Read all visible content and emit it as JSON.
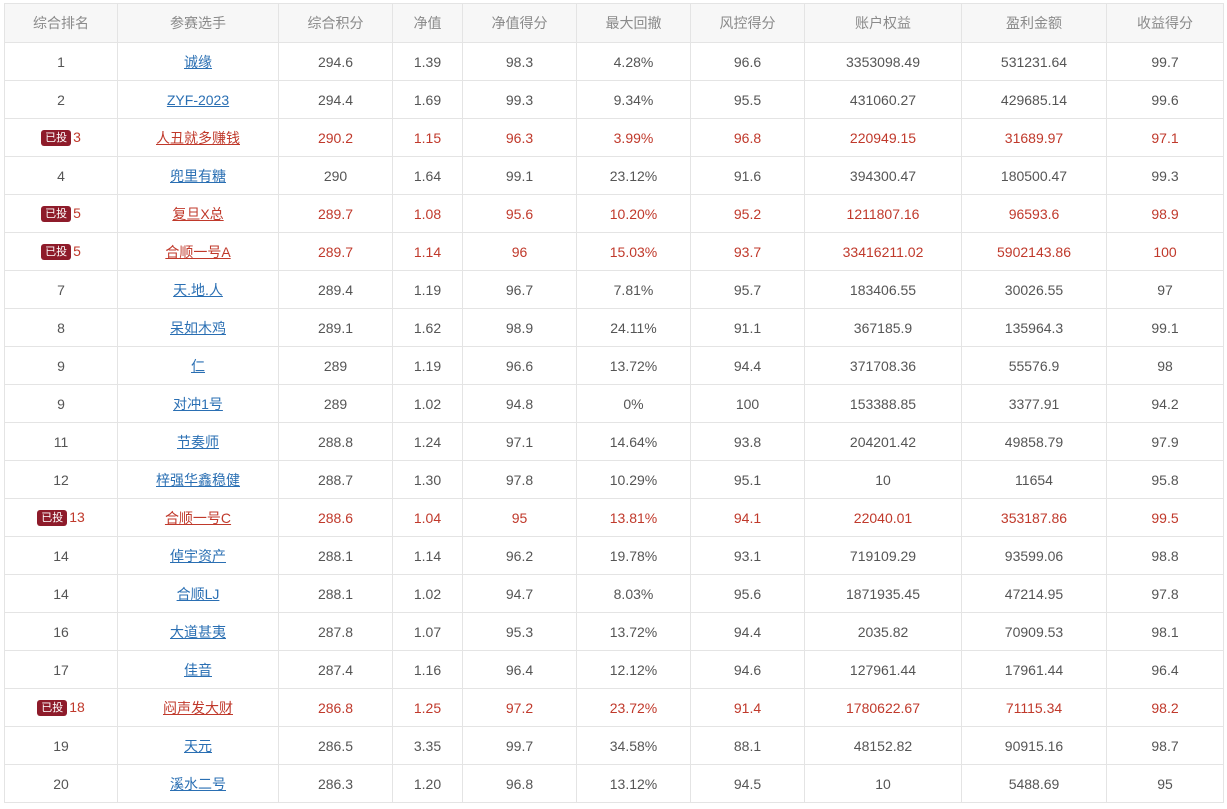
{
  "headers": [
    "综合排名",
    "参赛选手",
    "综合积分",
    "净值",
    "净值得分",
    "最大回撤",
    "风控得分",
    "账户权益",
    "盈利金额",
    "收益得分"
  ],
  "badge_label": "已投",
  "colors": {
    "invested_text": "#c0392b",
    "badge_bg": "#8e1b2a",
    "link": "#2a6fb3"
  },
  "rows": [
    {
      "rank": "1",
      "name": "诚缘",
      "score": "294.6",
      "nav": "1.39",
      "nav_score": "98.3",
      "max_dd": "4.28%",
      "risk_score": "96.6",
      "equity": "3353098.49",
      "profit": "531231.64",
      "return_score": "99.7",
      "invested": false
    },
    {
      "rank": "2",
      "name": "ZYF-2023",
      "score": "294.4",
      "nav": "1.69",
      "nav_score": "99.3",
      "max_dd": "9.34%",
      "risk_score": "95.5",
      "equity": "431060.27",
      "profit": "429685.14",
      "return_score": "99.6",
      "invested": false
    },
    {
      "rank": "3",
      "name": "人丑就多赚钱",
      "score": "290.2",
      "nav": "1.15",
      "nav_score": "96.3",
      "max_dd": "3.99%",
      "risk_score": "96.8",
      "equity": "220949.15",
      "profit": "31689.97",
      "return_score": "97.1",
      "invested": true
    },
    {
      "rank": "4",
      "name": "兜里有糖",
      "score": "290",
      "nav": "1.64",
      "nav_score": "99.1",
      "max_dd": "23.12%",
      "risk_score": "91.6",
      "equity": "394300.47",
      "profit": "180500.47",
      "return_score": "99.3",
      "invested": false
    },
    {
      "rank": "5",
      "name": "复旦X总",
      "score": "289.7",
      "nav": "1.08",
      "nav_score": "95.6",
      "max_dd": "10.20%",
      "risk_score": "95.2",
      "equity": "1211807.16",
      "profit": "96593.6",
      "return_score": "98.9",
      "invested": true
    },
    {
      "rank": "5",
      "name": "合顺一号A",
      "score": "289.7",
      "nav": "1.14",
      "nav_score": "96",
      "max_dd": "15.03%",
      "risk_score": "93.7",
      "equity": "33416211.02",
      "profit": "5902143.86",
      "return_score": "100",
      "invested": true
    },
    {
      "rank": "7",
      "name": "天.地.人",
      "score": "289.4",
      "nav": "1.19",
      "nav_score": "96.7",
      "max_dd": "7.81%",
      "risk_score": "95.7",
      "equity": "183406.55",
      "profit": "30026.55",
      "return_score": "97",
      "invested": false
    },
    {
      "rank": "8",
      "name": "呆如木鸡",
      "score": "289.1",
      "nav": "1.62",
      "nav_score": "98.9",
      "max_dd": "24.11%",
      "risk_score": "91.1",
      "equity": "367185.9",
      "profit": "135964.3",
      "return_score": "99.1",
      "invested": false
    },
    {
      "rank": "9",
      "name": "仁",
      "score": "289",
      "nav": "1.19",
      "nav_score": "96.6",
      "max_dd": "13.72%",
      "risk_score": "94.4",
      "equity": "371708.36",
      "profit": "55576.9",
      "return_score": "98",
      "invested": false
    },
    {
      "rank": "9",
      "name": "对冲1号",
      "score": "289",
      "nav": "1.02",
      "nav_score": "94.8",
      "max_dd": "0%",
      "risk_score": "100",
      "equity": "153388.85",
      "profit": "3377.91",
      "return_score": "94.2",
      "invested": false
    },
    {
      "rank": "11",
      "name": "节奏师",
      "score": "288.8",
      "nav": "1.24",
      "nav_score": "97.1",
      "max_dd": "14.64%",
      "risk_score": "93.8",
      "equity": "204201.42",
      "profit": "49858.79",
      "return_score": "97.9",
      "invested": false
    },
    {
      "rank": "12",
      "name": "梓强华鑫稳健",
      "score": "288.7",
      "nav": "1.30",
      "nav_score": "97.8",
      "max_dd": "10.29%",
      "risk_score": "95.1",
      "equity": "10",
      "profit": "11654",
      "return_score": "95.8",
      "invested": false
    },
    {
      "rank": "13",
      "name": "合顺一号C",
      "score": "288.6",
      "nav": "1.04",
      "nav_score": "95",
      "max_dd": "13.81%",
      "risk_score": "94.1",
      "equity": "22040.01",
      "profit": "353187.86",
      "return_score": "99.5",
      "invested": true
    },
    {
      "rank": "14",
      "name": "倬宇资产",
      "score": "288.1",
      "nav": "1.14",
      "nav_score": "96.2",
      "max_dd": "19.78%",
      "risk_score": "93.1",
      "equity": "719109.29",
      "profit": "93599.06",
      "return_score": "98.8",
      "invested": false
    },
    {
      "rank": "14",
      "name": "合顺LJ",
      "score": "288.1",
      "nav": "1.02",
      "nav_score": "94.7",
      "max_dd": "8.03%",
      "risk_score": "95.6",
      "equity": "1871935.45",
      "profit": "47214.95",
      "return_score": "97.8",
      "invested": false
    },
    {
      "rank": "16",
      "name": "大道甚夷",
      "score": "287.8",
      "nav": "1.07",
      "nav_score": "95.3",
      "max_dd": "13.72%",
      "risk_score": "94.4",
      "equity": "2035.82",
      "profit": "70909.53",
      "return_score": "98.1",
      "invested": false
    },
    {
      "rank": "17",
      "name": "佳音",
      "score": "287.4",
      "nav": "1.16",
      "nav_score": "96.4",
      "max_dd": "12.12%",
      "risk_score": "94.6",
      "equity": "127961.44",
      "profit": "17961.44",
      "return_score": "96.4",
      "invested": false
    },
    {
      "rank": "18",
      "name": "闷声发大财",
      "score": "286.8",
      "nav": "1.25",
      "nav_score": "97.2",
      "max_dd": "23.72%",
      "risk_score": "91.4",
      "equity": "1780622.67",
      "profit": "71115.34",
      "return_score": "98.2",
      "invested": true
    },
    {
      "rank": "19",
      "name": "天元",
      "score": "286.5",
      "nav": "3.35",
      "nav_score": "99.7",
      "max_dd": "34.58%",
      "risk_score": "88.1",
      "equity": "48152.82",
      "profit": "90915.16",
      "return_score": "98.7",
      "invested": false
    },
    {
      "rank": "20",
      "name": "溪水二号",
      "score": "286.3",
      "nav": "1.20",
      "nav_score": "96.8",
      "max_dd": "13.12%",
      "risk_score": "94.5",
      "equity": "10",
      "profit": "5488.69",
      "return_score": "95",
      "invested": false
    }
  ]
}
